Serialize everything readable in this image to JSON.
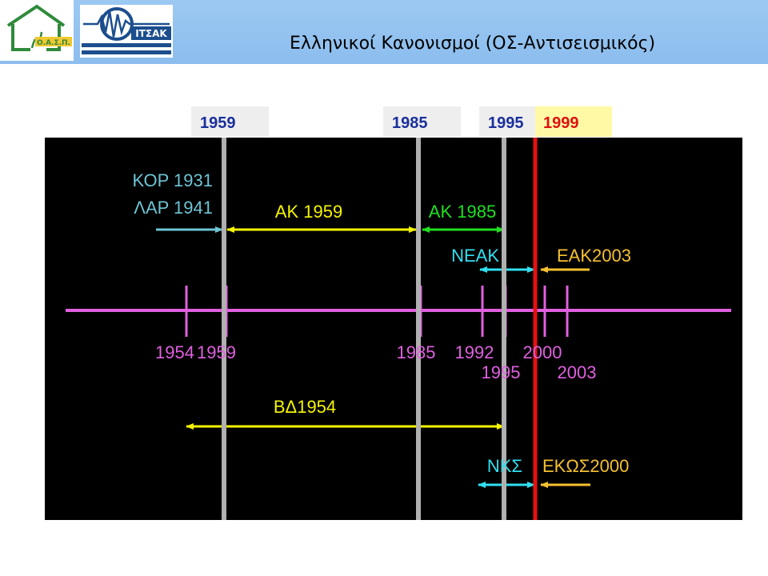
{
  "header": {
    "title": "Ελληνικοί Κανονισμοί (ΟΣ-Αντισεισμικός)",
    "logo_left": {
      "text": "Ο.Α.Σ.Π.",
      "icon": "house-icon"
    },
    "logo_right": {
      "text": "ΙΤΣΑΚ",
      "icon": "seismograph-icon"
    }
  },
  "year_boxes": [
    {
      "label": "1959",
      "color": "#1a2f9c",
      "bg": "#eeeeee"
    },
    {
      "label": "1985",
      "color": "#1a2f9c",
      "bg": "#eeeeee"
    },
    {
      "label": "1995",
      "color": "#1a2f9c",
      "bg": "#eeeeee"
    },
    {
      "label": "1999",
      "color": "#e01010",
      "bg": "#fff9a6"
    }
  ],
  "codes": {
    "kor": "ΚΟΡ 1931",
    "lar": "ΛΑΡ 1941",
    "ak1959": "ΑΚ 1959",
    "ak1985": "ΑΚ 1985",
    "neak": "ΝΕΑΚ",
    "eak2003": "ΕΑΚ2003",
    "vd1954": "ΒΔ1954",
    "nks": "ΝΚΣ",
    "ekos2000": "ΕΚΩΣ2000"
  },
  "timeline_years": [
    "1954",
    "1959",
    "1985",
    "1992",
    "2000",
    "1995",
    "2003"
  ],
  "colors": {
    "background": "#000000",
    "timeline": "#e060e0",
    "grey_line": "#b0b0b0",
    "red_line": "#e81010",
    "cyan_light": "#6ec4d4",
    "yellow": "#f5f500",
    "green": "#20e020",
    "cyan": "#30e0f0",
    "orange": "#f5c030",
    "header_bg": "#9cc9f2"
  }
}
